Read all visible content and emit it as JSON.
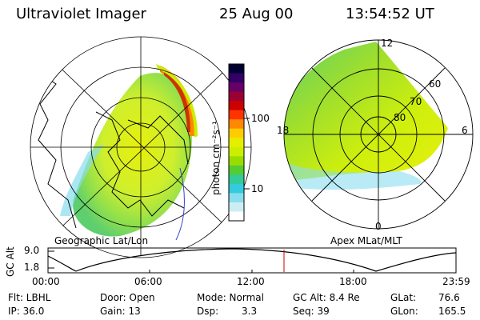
{
  "header": {
    "instrument": "Ultraviolet Imager",
    "date": "25 Aug 00",
    "time": "13:54:52 UT"
  },
  "colorbar": {
    "unit_label": "photon cm⁻²s⁻¹",
    "ticks": [
      "100",
      "10"
    ],
    "colors": [
      "#000033",
      "#330066",
      "#660066",
      "#990033",
      "#cc0000",
      "#ff3300",
      "#ff8800",
      "#ffcc00",
      "#e6ee00",
      "#ccee00",
      "#99dd00",
      "#55cc33",
      "#33cc99",
      "#33ccdd",
      "#88ddee",
      "#cceef2",
      "#ffffff"
    ]
  },
  "left_map": {
    "caption": "Geographic Lat/Lon"
  },
  "right_map": {
    "caption": "Apex MLat/MLT",
    "mlt_labels": {
      "top": "12",
      "right": "6",
      "bottom": "0",
      "left": "18"
    },
    "mlat_labels": [
      "60",
      "70",
      "80"
    ]
  },
  "altitude_plot": {
    "ylabel": "GC Alt",
    "yticks": [
      "9.0",
      "1.8"
    ],
    "xticks": [
      "00:00",
      "06:00",
      "12:00",
      "18:00",
      "23:59"
    ],
    "current_time_marker_color": "#cc0000"
  },
  "status": {
    "filter": "Flt: LBHL",
    "ip": "IP: 36.0",
    "door": "Door: Open",
    "gain": "Gain: 13",
    "mode": "Mode: Normal",
    "dsp_label": "Dsp:",
    "dsp_value": "3.3",
    "gc_alt": "GC Alt: 8.4 Re",
    "seq": "Seq: 39",
    "glat_label": "GLat:",
    "glat_value": "76.6",
    "glon_label": "GLon:",
    "glon_value": "165.5"
  }
}
